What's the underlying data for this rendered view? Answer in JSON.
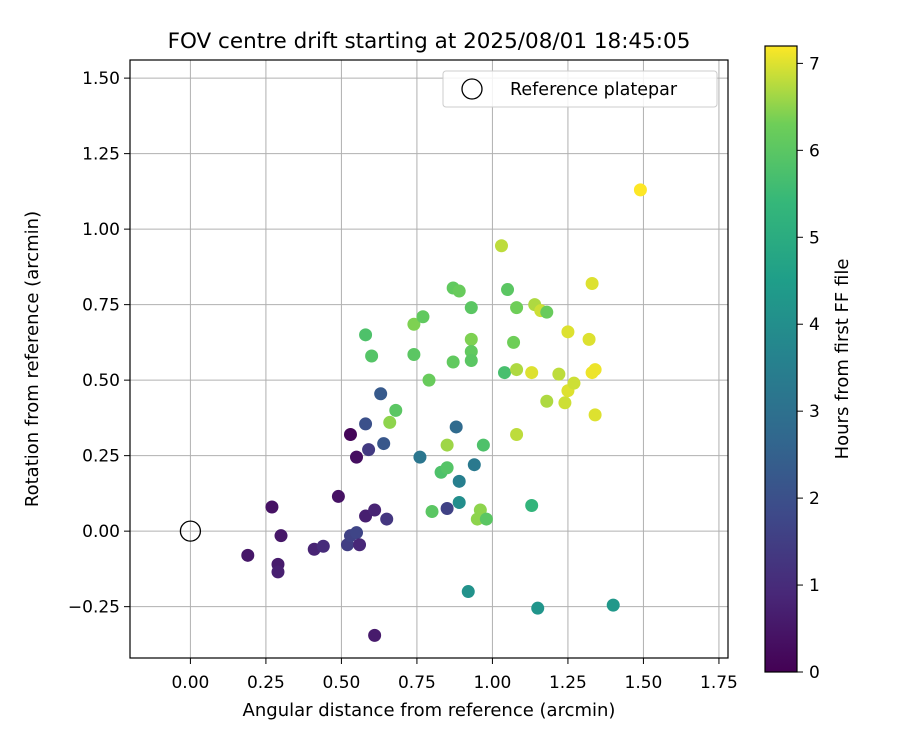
{
  "chart_data": {
    "type": "scatter",
    "title": "FOV centre drift starting at 2025/08/01 18:45:05",
    "xlabel": "Angular distance from reference (arcmin)",
    "ylabel": "Rotation from reference (arcmin)",
    "xlim": [
      -0.2,
      1.78
    ],
    "ylim": [
      -0.42,
      1.56
    ],
    "xticks": [
      "0.00",
      "0.25",
      "0.50",
      "0.75",
      "1.00",
      "1.25",
      "1.50",
      "1.75"
    ],
    "yticks": [
      "−0.25",
      "0.00",
      "0.25",
      "0.50",
      "0.75",
      "1.00",
      "1.25",
      "1.50"
    ],
    "xtick_values": [
      0,
      0.25,
      0.5,
      0.75,
      1.0,
      1.25,
      1.5,
      1.75
    ],
    "ytick_values": [
      -0.25,
      0,
      0.25,
      0.5,
      0.75,
      1.0,
      1.25,
      1.5
    ],
    "grid": true,
    "legend": {
      "placement": "top-right",
      "entries": [
        "Reference platepar"
      ]
    },
    "reference_point": {
      "x": 0.0,
      "y": 0.0,
      "label": "Reference platepar"
    },
    "colorbar": {
      "label": "Hours from first FF file",
      "colormap": "viridis",
      "range": [
        0,
        7.2
      ],
      "ticks": [
        "0",
        "1",
        "2",
        "3",
        "4",
        "5",
        "6",
        "7"
      ],
      "tick_values": [
        0,
        1,
        2,
        3,
        4,
        5,
        6,
        7
      ]
    },
    "points": [
      {
        "x": 0.19,
        "y": -0.08,
        "c": 0.5
      },
      {
        "x": 0.27,
        "y": 0.08,
        "c": 0.4
      },
      {
        "x": 0.29,
        "y": -0.11,
        "c": 0.6
      },
      {
        "x": 0.29,
        "y": -0.135,
        "c": 0.7
      },
      {
        "x": 0.3,
        "y": -0.015,
        "c": 0.5
      },
      {
        "x": 0.41,
        "y": -0.06,
        "c": 0.8
      },
      {
        "x": 0.44,
        "y": -0.05,
        "c": 1.0
      },
      {
        "x": 0.49,
        "y": 0.115,
        "c": 0.4
      },
      {
        "x": 0.52,
        "y": -0.045,
        "c": 1.5
      },
      {
        "x": 0.53,
        "y": -0.015,
        "c": 1.6
      },
      {
        "x": 0.53,
        "y": 0.32,
        "c": 0.1
      },
      {
        "x": 0.55,
        "y": -0.005,
        "c": 1.7
      },
      {
        "x": 0.55,
        "y": 0.245,
        "c": 0.3
      },
      {
        "x": 0.56,
        "y": -0.045,
        "c": 0.9
      },
      {
        "x": 0.58,
        "y": 0.05,
        "c": 0.7
      },
      {
        "x": 0.59,
        "y": 0.27,
        "c": 1.4
      },
      {
        "x": 0.61,
        "y": 0.07,
        "c": 0.8
      },
      {
        "x": 0.61,
        "y": -0.345,
        "c": 0.6
      },
      {
        "x": 0.58,
        "y": 0.355,
        "c": 2.0
      },
      {
        "x": 0.63,
        "y": 0.455,
        "c": 2.3
      },
      {
        "x": 0.64,
        "y": 0.29,
        "c": 2.2
      },
      {
        "x": 0.65,
        "y": 0.04,
        "c": 1.3
      },
      {
        "x": 0.66,
        "y": 0.36,
        "c": 6.5
      },
      {
        "x": 0.68,
        "y": 0.4,
        "c": 6.0
      },
      {
        "x": 0.58,
        "y": 0.65,
        "c": 5.8
      },
      {
        "x": 0.6,
        "y": 0.58,
        "c": 5.9
      },
      {
        "x": 0.74,
        "y": 0.585,
        "c": 6.0
      },
      {
        "x": 0.74,
        "y": 0.685,
        "c": 6.4
      },
      {
        "x": 0.77,
        "y": 0.71,
        "c": 6.1
      },
      {
        "x": 0.79,
        "y": 0.5,
        "c": 6.2
      },
      {
        "x": 0.76,
        "y": 0.245,
        "c": 3.2
      },
      {
        "x": 0.8,
        "y": 0.065,
        "c": 6.0
      },
      {
        "x": 0.83,
        "y": 0.195,
        "c": 5.8
      },
      {
        "x": 0.85,
        "y": 0.21,
        "c": 5.9
      },
      {
        "x": 0.85,
        "y": 0.285,
        "c": 6.6
      },
      {
        "x": 0.85,
        "y": 0.075,
        "c": 1.6
      },
      {
        "x": 0.87,
        "y": 0.56,
        "c": 6.1
      },
      {
        "x": 0.87,
        "y": 0.805,
        "c": 6.1
      },
      {
        "x": 0.88,
        "y": 0.345,
        "c": 2.8
      },
      {
        "x": 0.89,
        "y": 0.795,
        "c": 6.2
      },
      {
        "x": 0.89,
        "y": 0.095,
        "c": 4.0
      },
      {
        "x": 0.89,
        "y": 0.165,
        "c": 3.5
      },
      {
        "x": 0.93,
        "y": 0.74,
        "c": 6.0
      },
      {
        "x": 0.93,
        "y": 0.635,
        "c": 6.4
      },
      {
        "x": 0.93,
        "y": 0.595,
        "c": 6.1
      },
      {
        "x": 0.93,
        "y": 0.565,
        "c": 6.0
      },
      {
        "x": 0.94,
        "y": 0.22,
        "c": 3.3
      },
      {
        "x": 0.95,
        "y": 0.04,
        "c": 6.5
      },
      {
        "x": 0.96,
        "y": 0.07,
        "c": 6.5
      },
      {
        "x": 0.97,
        "y": 0.285,
        "c": 5.8
      },
      {
        "x": 0.98,
        "y": 0.04,
        "c": 6.0
      },
      {
        "x": 0.92,
        "y": -0.2,
        "c": 4.1
      },
      {
        "x": 1.03,
        "y": 0.945,
        "c": 6.8
      },
      {
        "x": 1.04,
        "y": 0.525,
        "c": 5.7
      },
      {
        "x": 1.05,
        "y": 0.8,
        "c": 6.0
      },
      {
        "x": 1.07,
        "y": 0.625,
        "c": 6.3
      },
      {
        "x": 1.08,
        "y": 0.74,
        "c": 6.3
      },
      {
        "x": 1.08,
        "y": 0.535,
        "c": 6.7
      },
      {
        "x": 1.08,
        "y": 0.32,
        "c": 6.8
      },
      {
        "x": 1.13,
        "y": 0.525,
        "c": 7.0
      },
      {
        "x": 1.13,
        "y": 0.085,
        "c": 5.3
      },
      {
        "x": 1.14,
        "y": 0.75,
        "c": 6.7
      },
      {
        "x": 1.15,
        "y": -0.255,
        "c": 4.2
      },
      {
        "x": 1.16,
        "y": 0.73,
        "c": 6.9
      },
      {
        "x": 1.18,
        "y": 0.725,
        "c": 6.2
      },
      {
        "x": 1.18,
        "y": 0.43,
        "c": 6.7
      },
      {
        "x": 1.22,
        "y": 0.52,
        "c": 6.8
      },
      {
        "x": 1.24,
        "y": 0.425,
        "c": 6.9
      },
      {
        "x": 1.25,
        "y": 0.66,
        "c": 7.0
      },
      {
        "x": 1.25,
        "y": 0.465,
        "c": 7.0
      },
      {
        "x": 1.27,
        "y": 0.49,
        "c": 6.9
      },
      {
        "x": 1.32,
        "y": 0.635,
        "c": 7.0
      },
      {
        "x": 1.33,
        "y": 0.82,
        "c": 7.0
      },
      {
        "x": 1.33,
        "y": 0.525,
        "c": 7.1
      },
      {
        "x": 1.34,
        "y": 0.535,
        "c": 7.1
      },
      {
        "x": 1.34,
        "y": 0.385,
        "c": 7.0
      },
      {
        "x": 1.4,
        "y": -0.245,
        "c": 4.3
      },
      {
        "x": 1.49,
        "y": 1.13,
        "c": 7.2
      }
    ]
  }
}
